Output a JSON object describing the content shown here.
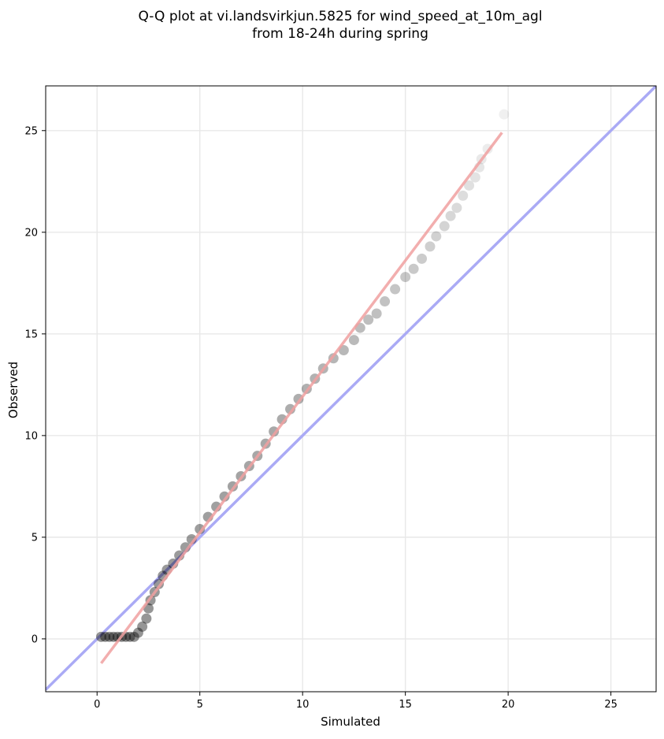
{
  "chart_data": {
    "type": "scatter",
    "title": "Q-Q plot at vi.landsvirkjun.5825 for wind_speed_at_10m_agl",
    "subtitle": "from 18-24h during spring",
    "xlabel": "Simulated",
    "ylabel": "Observed",
    "xlim": [
      -2.5,
      27.2
    ],
    "ylim": [
      -2.6,
      27.2
    ],
    "xticks": [
      0,
      5,
      10,
      15,
      20,
      25
    ],
    "yticks": [
      0,
      5,
      10,
      15,
      20,
      25
    ],
    "xtick_labels": [
      "0",
      "5",
      "10",
      "15",
      "20",
      "25"
    ],
    "ytick_labels": [
      "0",
      "5",
      "10",
      "15",
      "20",
      "25"
    ],
    "grid": true,
    "series": [
      {
        "kind": "quantile-points",
        "color": "#000000",
        "points": [
          [
            0.2,
            0.1
          ],
          [
            0.4,
            0.1
          ],
          [
            0.6,
            0.1
          ],
          [
            0.8,
            0.1
          ],
          [
            1.0,
            0.1
          ],
          [
            1.2,
            0.1
          ],
          [
            1.4,
            0.1
          ],
          [
            1.6,
            0.1
          ],
          [
            1.8,
            0.1
          ],
          [
            2.0,
            0.3
          ],
          [
            2.2,
            0.6
          ],
          [
            2.4,
            1.0
          ],
          [
            2.5,
            1.5
          ],
          [
            2.6,
            1.9
          ],
          [
            2.8,
            2.3
          ],
          [
            3.0,
            2.7
          ],
          [
            3.2,
            3.1
          ],
          [
            3.4,
            3.4
          ],
          [
            3.7,
            3.7
          ],
          [
            4.0,
            4.1
          ],
          [
            4.3,
            4.5
          ],
          [
            4.6,
            4.9
          ],
          [
            5.0,
            5.4
          ],
          [
            5.4,
            6.0
          ],
          [
            5.8,
            6.5
          ],
          [
            6.2,
            7.0
          ],
          [
            6.6,
            7.5
          ],
          [
            7.0,
            8.0
          ],
          [
            7.4,
            8.5
          ],
          [
            7.8,
            9.0
          ],
          [
            8.2,
            9.6
          ],
          [
            8.6,
            10.2
          ],
          [
            9.0,
            10.8
          ],
          [
            9.4,
            11.3
          ],
          [
            9.8,
            11.8
          ],
          [
            10.2,
            12.3
          ],
          [
            10.6,
            12.8
          ],
          [
            11.0,
            13.3
          ],
          [
            11.5,
            13.8
          ],
          [
            12.0,
            14.2
          ],
          [
            12.5,
            14.7
          ],
          [
            12.8,
            15.3
          ],
          [
            13.2,
            15.7
          ],
          [
            13.6,
            16.0
          ],
          [
            14.0,
            16.6
          ],
          [
            14.5,
            17.2
          ],
          [
            15.0,
            17.8
          ],
          [
            15.4,
            18.2
          ],
          [
            15.8,
            18.7
          ],
          [
            16.2,
            19.3
          ],
          [
            16.5,
            19.8
          ],
          [
            16.9,
            20.3
          ],
          [
            17.2,
            20.8
          ],
          [
            17.5,
            21.2
          ],
          [
            17.8,
            21.8
          ],
          [
            18.1,
            22.3
          ],
          [
            18.4,
            22.7
          ],
          [
            18.6,
            23.2
          ],
          [
            18.7,
            23.6
          ],
          [
            19.0,
            24.1
          ],
          [
            19.8,
            25.8
          ]
        ]
      },
      {
        "kind": "regression-line",
        "color": "#f0a0a0",
        "x": [
          0.2,
          19.7
        ],
        "y": [
          -1.2,
          24.9
        ]
      },
      {
        "kind": "identity-line",
        "color": "#aaaaf5",
        "x": [
          -2.5,
          27.2
        ],
        "y": [
          -2.5,
          27.2
        ]
      }
    ]
  }
}
